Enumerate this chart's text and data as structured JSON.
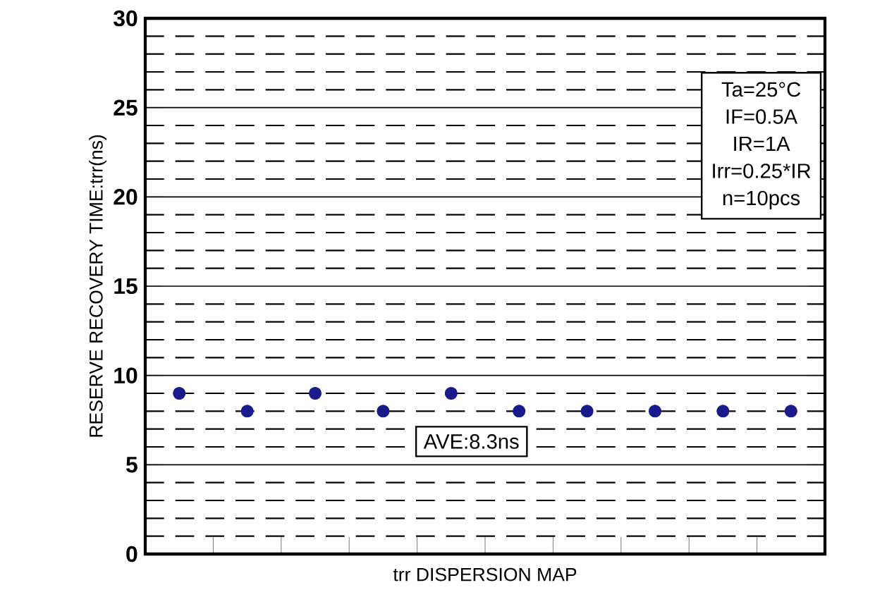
{
  "chart_data": {
    "type": "scatter",
    "xlabel": "trr DISPERSION MAP",
    "ylabel": "RESERVE RECOVERY TIME:trr(ns)",
    "categories": [
      null,
      null,
      null,
      null,
      null,
      null,
      null,
      null,
      null,
      null
    ],
    "series": [
      {
        "color": "#1a1a8c",
        "values": [
          9,
          8,
          9,
          8,
          9,
          8,
          8,
          8,
          8,
          8
        ]
      }
    ],
    "grid": "y",
    "tick_labels": "y",
    "ylim": [
      0,
      30
    ],
    "yticks": [
      0,
      5,
      10,
      15,
      20,
      25,
      30
    ],
    "annotations": [
      "Ta=25°C",
      "IF=0.5A",
      "IR=1A",
      "Irr=0.25*IR",
      "n=10pcs",
      "AVE:8.3ns"
    ]
  }
}
